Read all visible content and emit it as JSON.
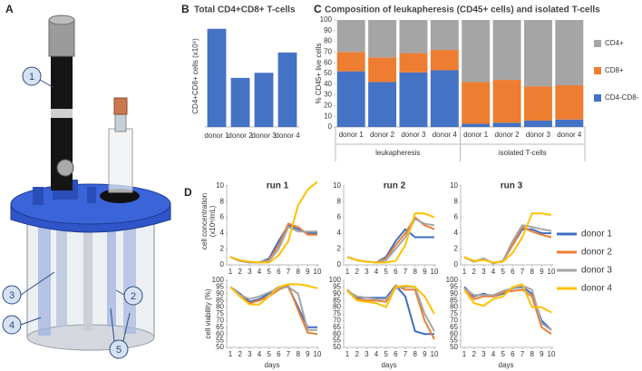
{
  "diagram": {
    "panel": "A",
    "callouts": [
      "1",
      "2",
      "3",
      "4",
      "5"
    ]
  },
  "chart_data": [
    {
      "type": "bar",
      "panel": "B",
      "title": "Total CD4+CD8+ T-cells",
      "ylabel": "CD4+CD8+ cells (x10⁹)",
      "categories": [
        "donor 1",
        "donor 2",
        "donor 3",
        "donor 4"
      ],
      "values": [
        2.9,
        1.45,
        1.6,
        2.2
      ],
      "color": "#4472c4",
      "ylim": [
        0,
        3
      ]
    },
    {
      "type": "stacked-bar",
      "panel": "C",
      "title": "Composition of leukapheresis (CD45+ cells) and isolated T-cells",
      "ylabel": "% CD45+ live cells",
      "categories": [
        "donor 1",
        "donor 2",
        "donor 3",
        "donor 4",
        "donor 1",
        "donor 2",
        "donor 3",
        "donor 4"
      ],
      "groups": [
        "leukapheresis",
        "isolated T-cells"
      ],
      "series": [
        {
          "name": "CD4-CD8-",
          "color": "#4472c4",
          "values": [
            52,
            42,
            51,
            53,
            3,
            4,
            6,
            7
          ]
        },
        {
          "name": "CD8+",
          "color": "#ed7d31",
          "values": [
            18,
            23,
            18,
            19,
            39,
            40,
            32,
            32
          ]
        },
        {
          "name": "CD4+",
          "color": "#a5a5a5",
          "values": [
            30,
            35,
            31,
            28,
            58,
            56,
            62,
            61
          ]
        }
      ],
      "ylim": [
        0,
        100
      ],
      "yticks": [
        0,
        10,
        20,
        30,
        40,
        50,
        60,
        70,
        80,
        90,
        100
      ]
    },
    {
      "type": "line-grid",
      "panel": "D",
      "xlabel": "days",
      "x": [
        1,
        2,
        3,
        4,
        5,
        6,
        7,
        8,
        9,
        10
      ],
      "xlim": [
        1,
        10
      ],
      "xticks": [
        1,
        2,
        3,
        4,
        5,
        6,
        7,
        8,
        9,
        10
      ],
      "columns": [
        "run 1",
        "run 2",
        "run 3"
      ],
      "series": [
        {
          "name": "donor 1",
          "color": "#3d6fc4"
        },
        {
          "name": "donor 2",
          "color": "#ed7d31"
        },
        {
          "name": "donor 3",
          "color": "#a5a5a5"
        },
        {
          "name": "donor 4",
          "color": "#ffc000"
        }
      ],
      "rows": [
        {
          "ylabel": [
            "cell concentration",
            "(x10⁶/mL)"
          ],
          "ylim": [
            0,
            11
          ],
          "yticks": [
            0,
            2,
            4,
            6,
            8,
            10
          ],
          "values": [
            [
              [
                1,
                0.5,
                0.3,
                0.3,
                0.8,
                3,
                5,
                4.5,
                4,
                4
              ],
              [
                1,
                0.5,
                0.3,
                0.3,
                0.6,
                2.5,
                5.2,
                4.8,
                3.8,
                3.8
              ],
              [
                1,
                0.5,
                0.3,
                0.3,
                0.5,
                2,
                4.8,
                4.2,
                4.2,
                4.2
              ],
              [
                1,
                0.6,
                0.4,
                0.3,
                0.3,
                1.2,
                3,
                7.5,
                9.5,
                10.5
              ]
            ],
            [
              [
                1,
                0.6,
                0.4,
                0.3,
                1,
                3,
                4.5,
                3.5,
                3.5,
                3.5
              ],
              [
                1,
                0.6,
                0.4,
                0.3,
                0.8,
                2.5,
                4,
                6,
                5,
                4.5
              ],
              [
                1,
                0.6,
                0.4,
                0.3,
                0.6,
                2,
                3.5,
                5.8,
                5.2,
                5
              ],
              [
                1,
                0.6,
                0.4,
                0.3,
                0.3,
                0.5,
                2.5,
                6.5,
                6.5,
                6
              ]
            ],
            [
              [
                1,
                0.4,
                0.8,
                0.2,
                0.5,
                2.5,
                4.5,
                4.5,
                4,
                4
              ],
              [
                1,
                0.4,
                0.8,
                0.2,
                0.5,
                2.5,
                4.8,
                4.2,
                3.8,
                3.5
              ],
              [
                1,
                0.4,
                0.8,
                0.2,
                0.5,
                3,
                5,
                4.8,
                4.5,
                4.3
              ],
              [
                1,
                0.5,
                0.6,
                0.3,
                0.4,
                1.5,
                3.5,
                6.5,
                6.5,
                6.3
              ]
            ]
          ]
        },
        {
          "ylabel": [
            "cell viability (%)"
          ],
          "ylim": [
            50,
            100
          ],
          "yticks": [
            50,
            55,
            60,
            65,
            70,
            75,
            80,
            85,
            90,
            95,
            100
          ],
          "values": [
            [
              [
                95,
                90,
                84,
                86,
                90,
                95,
                95,
                80,
                65,
                65
              ],
              [
                95,
                88,
                83,
                85,
                88,
                93,
                96,
                78,
                61,
                60
              ],
              [
                95,
                89,
                86,
                88,
                91,
                94,
                95,
                90,
                63,
                63
              ],
              [
                95,
                88,
                82,
                82,
                88,
                95,
                97,
                97,
                96,
                94
              ]
            ],
            [
              [
                92,
                87,
                87,
                87,
                87,
                96,
                88,
                62,
                60,
                60
              ],
              [
                93,
                86,
                85,
                85,
                84,
                96,
                93,
                93,
                70,
                56
              ],
              [
                92,
                88,
                87,
                86,
                86,
                94,
                95,
                95,
                75,
                62
              ],
              [
                92,
                85,
                84,
                83,
                80,
                95,
                96,
                95,
                88,
                75
              ]
            ],
            [
              [
                95,
                88,
                90,
                88,
                90,
                94,
                95,
                90,
                70,
                63
              ],
              [
                93,
                86,
                88,
                88,
                91,
                92,
                93,
                88,
                65,
                60
              ],
              [
                94,
                89,
                89,
                89,
                92,
                94,
                96,
                93,
                68,
                63
              ],
              [
                93,
                83,
                81,
                86,
                88,
                95,
                97,
                80,
                80,
                76
              ]
            ]
          ]
        }
      ]
    }
  ]
}
